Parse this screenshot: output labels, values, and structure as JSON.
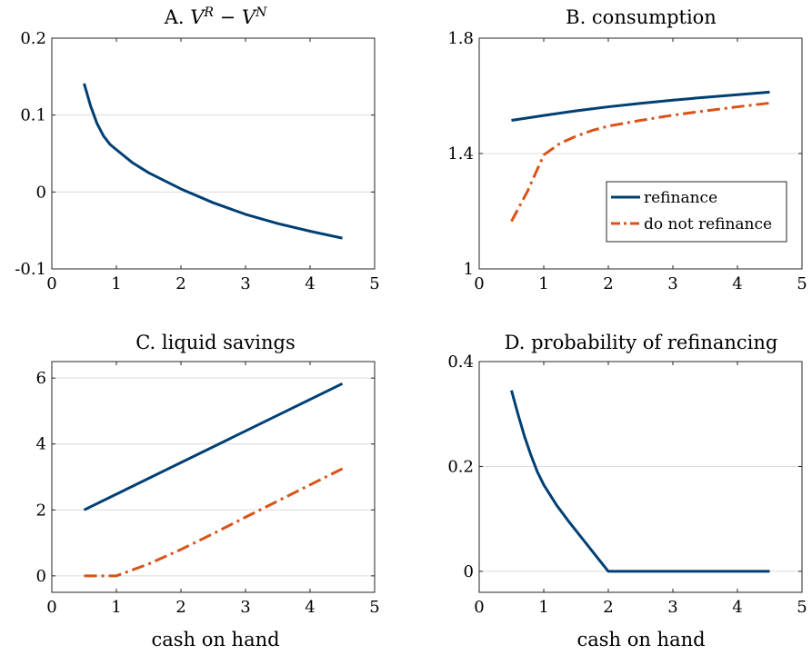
{
  "colors": {
    "refinance": "#003f74",
    "do_not_refinance": "#d95319"
  },
  "chart_data": [
    {
      "type": "line",
      "title_text": "A. ",
      "title_math": "V^R - V^N",
      "xlabel": "",
      "xlim": [
        0,
        5
      ],
      "ylim": [
        -0.1,
        0.2
      ],
      "xticks": [
        0,
        1,
        2,
        3,
        4,
        5
      ],
      "xtick_labels": [
        "0",
        "1",
        "2",
        "3",
        "4",
        "5"
      ],
      "yticks": [
        -0.1,
        0,
        0.1,
        0.2
      ],
      "ytick_labels": [
        "-0.1",
        "0",
        "0.1",
        "0.2"
      ],
      "grid": "y",
      "series": [
        {
          "key": "refinance",
          "style": "solid",
          "x": [
            0.5,
            0.6,
            0.7,
            0.8,
            0.9,
            1.0,
            1.25,
            1.5,
            2.0,
            2.5,
            3.0,
            3.5,
            4.0,
            4.5
          ],
          "y": [
            0.141,
            0.112,
            0.089,
            0.073,
            0.062,
            0.055,
            0.038,
            0.025,
            0.004,
            -0.014,
            -0.029,
            -0.041,
            -0.051,
            -0.06
          ]
        }
      ]
    },
    {
      "type": "line",
      "title": "B. consumption",
      "xlabel": "",
      "xlim": [
        0,
        5
      ],
      "ylim": [
        1,
        1.8
      ],
      "xticks": [
        0,
        1,
        2,
        3,
        4,
        5
      ],
      "xtick_labels": [
        "0",
        "1",
        "2",
        "3",
        "4",
        "5"
      ],
      "yticks": [
        1,
        1.4,
        1.8
      ],
      "ytick_labels": [
        "1",
        "1.4",
        "1.8"
      ],
      "grid": "y",
      "legend": "lower-right",
      "series": [
        {
          "name": "refinance",
          "key": "refinance",
          "style": "solid",
          "x": [
            0.5,
            1.0,
            1.5,
            2.0,
            2.5,
            3.0,
            3.5,
            4.0,
            4.5
          ],
          "y": [
            1.515,
            1.532,
            1.548,
            1.562,
            1.574,
            1.585,
            1.595,
            1.604,
            1.613
          ]
        },
        {
          "name": "do not refinance",
          "key": "do_not_refinance",
          "style": "dashdot",
          "x": [
            0.5,
            0.75,
            1.0,
            1.25,
            1.5,
            1.75,
            2.0,
            2.5,
            3.0,
            3.5,
            4.0,
            4.5
          ],
          "y": [
            1.165,
            1.27,
            1.395,
            1.435,
            1.46,
            1.48,
            1.495,
            1.515,
            1.533,
            1.548,
            1.562,
            1.575
          ]
        }
      ]
    },
    {
      "type": "line",
      "title": "C. liquid savings",
      "xlabel": "cash on hand",
      "xlim": [
        0,
        5
      ],
      "ylim": [
        -0.5,
        6.5
      ],
      "xticks": [
        0,
        1,
        2,
        3,
        4,
        5
      ],
      "xtick_labels": [
        "0",
        "1",
        "2",
        "3",
        "4",
        "5"
      ],
      "yticks": [
        0,
        2,
        4,
        6
      ],
      "ytick_labels": [
        "0",
        "2",
        "4",
        "6"
      ],
      "grid": "y",
      "series": [
        {
          "key": "refinance",
          "style": "solid",
          "x": [
            0.5,
            4.5
          ],
          "y": [
            2.0,
            5.83
          ]
        },
        {
          "key": "do_not_refinance",
          "style": "dashdot",
          "x": [
            0.5,
            0.75,
            1.0,
            1.5,
            2.0,
            2.5,
            3.0,
            3.5,
            4.0,
            4.5
          ],
          "y": [
            0.0,
            0.0,
            0.0,
            0.36,
            0.8,
            1.28,
            1.78,
            2.27,
            2.76,
            3.25
          ]
        }
      ]
    },
    {
      "type": "line",
      "title": "D. probability of refinancing",
      "xlabel": "cash on hand",
      "xlim": [
        0,
        5
      ],
      "ylim": [
        -0.04,
        0.4
      ],
      "xticks": [
        0,
        1,
        2,
        3,
        4,
        5
      ],
      "xtick_labels": [
        "0",
        "1",
        "2",
        "3",
        "4",
        "5"
      ],
      "yticks": [
        0,
        0.2,
        0.4
      ],
      "ytick_labels": [
        "0",
        "0.2",
        "0.4"
      ],
      "grid": "y",
      "series": [
        {
          "key": "refinance",
          "style": "solid",
          "x": [
            0.5,
            0.6,
            0.7,
            0.8,
            0.9,
            1.0,
            1.2,
            1.4,
            1.6,
            1.8,
            2.0,
            2.5,
            3.0,
            3.5,
            4.0,
            4.5
          ],
          "y": [
            0.345,
            0.3,
            0.258,
            0.222,
            0.19,
            0.165,
            0.126,
            0.093,
            0.062,
            0.031,
            0.0,
            0.0,
            0.0,
            0.0,
            0.0,
            0.0
          ]
        }
      ]
    }
  ]
}
